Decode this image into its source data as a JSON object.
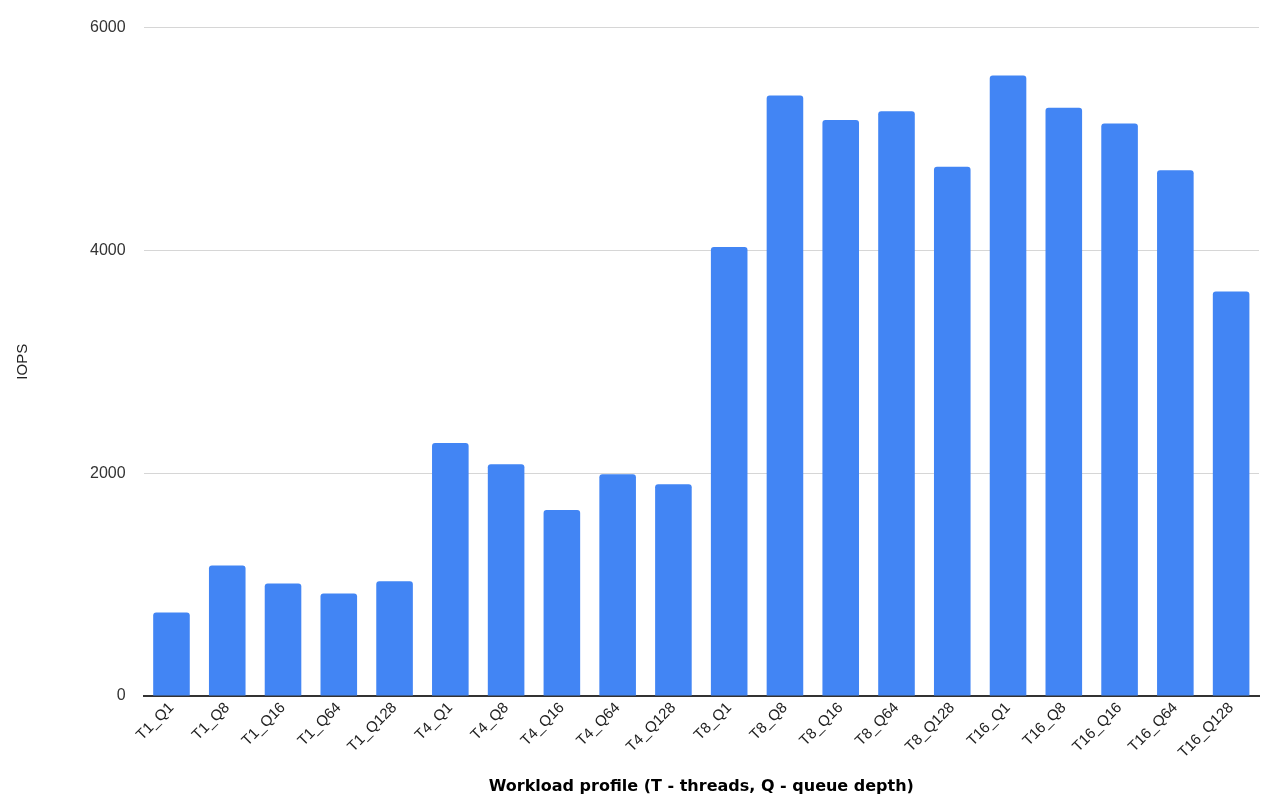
{
  "chart_data": {
    "type": "bar",
    "xlabel": "Workload profile (T - threads, Q - queue depth)",
    "ylabel": "IOPS",
    "categories": [
      "T1_Q1",
      "T1_Q8",
      "T1_Q16",
      "T1_Q64",
      "T1_Q128",
      "T4_Q1",
      "T4_Q8",
      "T4_Q16",
      "T4_Q64",
      "T4_Q128",
      "T8_Q1",
      "T8_Q8",
      "T8_Q16",
      "T8_Q64",
      "T8_Q128",
      "T16_Q1",
      "T16_Q8",
      "T16_Q16",
      "T16_Q64",
      "T16_Q128"
    ],
    "values": [
      750,
      1170,
      1010,
      920,
      1030,
      2270,
      2080,
      1670,
      1990,
      1900,
      4030,
      5390,
      5170,
      5250,
      4750,
      5570,
      5280,
      5140,
      4720,
      3630
    ],
    "color": "#4285f4",
    "ylim": [
      0,
      6000
    ],
    "yticks": [
      0,
      2000,
      4000,
      6000
    ],
    "grid": "y",
    "legend": false
  }
}
